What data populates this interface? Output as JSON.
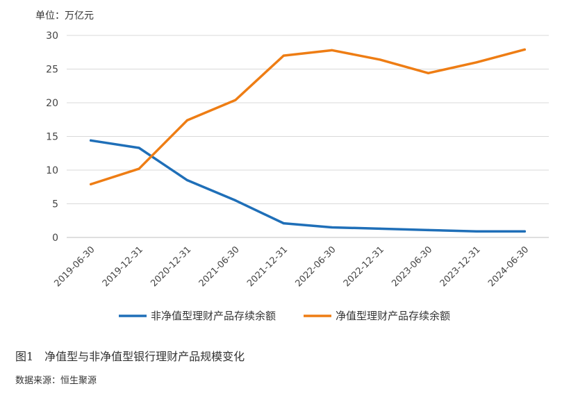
{
  "unit_label": "单位：万亿元",
  "figure_caption": "图1　净值型与非净值型银行理财产品规模变化",
  "source_note": "数据来源：恒生聚源",
  "chart_data": {
    "type": "line",
    "categories": [
      "2019-06-30",
      "2019-12-31",
      "2020-12-31",
      "2021-06-30",
      "2021-12-31",
      "2022-06-30",
      "2022-12-31",
      "2023-06-30",
      "2023-12-31",
      "2024-06-30"
    ],
    "ylim": [
      0,
      30
    ],
    "yticks": [
      "0",
      "5",
      "10",
      "15",
      "20",
      "25",
      "30"
    ],
    "grid": true,
    "legend": "bottom",
    "series": [
      {
        "name": "非净值型理财产品存续余额",
        "color": "#1f6fb8",
        "values": [
          14.4,
          13.3,
          8.5,
          5.5,
          2.1,
          1.5,
          1.3,
          1.1,
          0.9,
          0.9
        ]
      },
      {
        "name": "净值型理财产品存续余额",
        "color": "#ee7d14",
        "values": [
          7.9,
          10.2,
          17.4,
          20.4,
          27.0,
          27.8,
          26.4,
          24.4,
          26.0,
          27.9
        ]
      }
    ]
  }
}
